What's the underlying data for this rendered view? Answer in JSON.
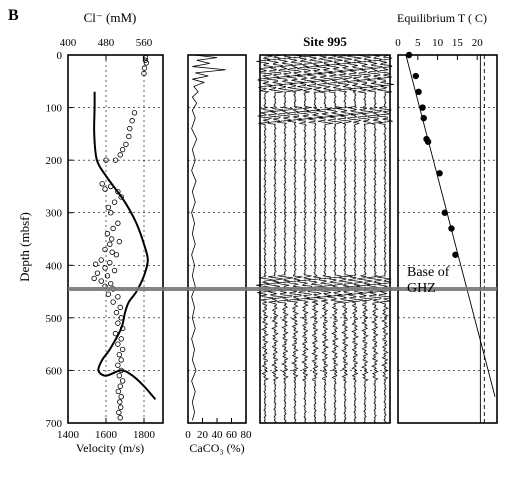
{
  "panel_label": "B",
  "chart_data": [
    {
      "type": "line",
      "name": "velocity-chloride",
      "title": "",
      "xlabel": "Velocity (m/s)",
      "ylabel": "Depth (mbsf)",
      "xlim": [
        1400,
        1900
      ],
      "ylim": [
        0,
        700
      ],
      "x_ticks": [
        1400,
        1600,
        1800
      ],
      "y_ticks": [
        0,
        100,
        200,
        300,
        400,
        500,
        600,
        700
      ],
      "grid": true,
      "velocity_curve": [
        [
          1540,
          70
        ],
        [
          1540,
          100
        ],
        [
          1538,
          150
        ],
        [
          1552,
          200
        ],
        [
          1600,
          230
        ],
        [
          1640,
          250
        ],
        [
          1700,
          280
        ],
        [
          1760,
          320
        ],
        [
          1800,
          360
        ],
        [
          1820,
          390
        ],
        [
          1800,
          420
        ],
        [
          1760,
          450
        ],
        [
          1720,
          470
        ],
        [
          1700,
          490
        ],
        [
          1680,
          520
        ],
        [
          1620,
          560
        ],
        [
          1580,
          580
        ],
        [
          1560,
          600
        ],
        [
          1600,
          610
        ],
        [
          1680,
          600
        ],
        [
          1740,
          610
        ],
        [
          1800,
          630
        ],
        [
          1860,
          655
        ]
      ],
      "top_axis": {
        "label": "Cl⁻ (mM)",
        "range": [
          400,
          600
        ],
        "ticks": [
          400,
          480,
          560
        ]
      },
      "chloride_points": [
        [
          563,
          5
        ],
        [
          565,
          15
        ],
        [
          561,
          25
        ],
        [
          560,
          35
        ],
        [
          563,
          10
        ],
        [
          540,
          110
        ],
        [
          535,
          125
        ],
        [
          530,
          140
        ],
        [
          528,
          155
        ],
        [
          522,
          170
        ],
        [
          515,
          180
        ],
        [
          510,
          190
        ],
        [
          500,
          200
        ],
        [
          480,
          200
        ],
        [
          472,
          245
        ],
        [
          490,
          250
        ],
        [
          478,
          255
        ],
        [
          505,
          260
        ],
        [
          512,
          270
        ],
        [
          498,
          280
        ],
        [
          485,
          290
        ],
        [
          490,
          300
        ],
        [
          505,
          320
        ],
        [
          495,
          330
        ],
        [
          483,
          340
        ],
        [
          492,
          350
        ],
        [
          508,
          355
        ],
        [
          488,
          360
        ],
        [
          478,
          370
        ],
        [
          493,
          375
        ],
        [
          502,
          380
        ],
        [
          470,
          390
        ],
        [
          488,
          395
        ],
        [
          458,
          398
        ],
        [
          478,
          405
        ],
        [
          498,
          410
        ],
        [
          462,
          415
        ],
        [
          483,
          420
        ],
        [
          455,
          425
        ],
        [
          470,
          430
        ],
        [
          490,
          435
        ],
        [
          478,
          440
        ],
        [
          495,
          445
        ],
        [
          485,
          455
        ],
        [
          505,
          460
        ],
        [
          495,
          470
        ],
        [
          510,
          480
        ],
        [
          502,
          490
        ],
        [
          512,
          500
        ],
        [
          505,
          510
        ],
        [
          515,
          520
        ],
        [
          500,
          530
        ],
        [
          512,
          540
        ],
        [
          505,
          550
        ],
        [
          515,
          560
        ],
        [
          508,
          570
        ],
        [
          512,
          580
        ],
        [
          505,
          590
        ],
        [
          512,
          600
        ],
        [
          508,
          610
        ],
        [
          515,
          620
        ],
        [
          510,
          630
        ],
        [
          506,
          640
        ],
        [
          512,
          650
        ],
        [
          509,
          660
        ],
        [
          511,
          670
        ],
        [
          507,
          680
        ],
        [
          510,
          690
        ]
      ]
    },
    {
      "type": "line",
      "name": "carbonate",
      "title": "",
      "xlabel": "CaCO₃ (%)",
      "xlim": [
        0,
        80
      ],
      "ylim": [
        0,
        700
      ],
      "x_ticks": [
        0,
        20,
        40,
        60,
        80
      ],
      "series": [
        {
          "values": [
            [
              8,
              0
            ],
            [
              40,
              5
            ],
            [
              12,
              10
            ],
            [
              30,
              16
            ],
            [
              6,
              22
            ],
            [
              52,
              28
            ],
            [
              10,
              34
            ],
            [
              28,
              40
            ],
            [
              6,
              46
            ],
            [
              22,
              52
            ],
            [
              8,
              60
            ],
            [
              14,
              70
            ],
            [
              6,
              80
            ],
            [
              12,
              92
            ],
            [
              6,
              105
            ],
            [
              10,
              120
            ],
            [
              5,
              140
            ],
            [
              12,
              160
            ],
            [
              6,
              180
            ],
            [
              10,
              200
            ],
            [
              5,
              220
            ],
            [
              11,
              240
            ],
            [
              6,
              260
            ],
            [
              10,
              280
            ],
            [
              5,
              300
            ],
            [
              9,
              320
            ],
            [
              6,
              340
            ],
            [
              10,
              360
            ],
            [
              5,
              380
            ],
            [
              9,
              400
            ],
            [
              6,
              420
            ],
            [
              10,
              440
            ],
            [
              5,
              460
            ],
            [
              9,
              480
            ],
            [
              6,
              500
            ],
            [
              10,
              520
            ],
            [
              5,
              540
            ],
            [
              9,
              560
            ],
            [
              6,
              580
            ],
            [
              11,
              600
            ],
            [
              5,
              620
            ],
            [
              10,
              640
            ],
            [
              6,
              660
            ],
            [
              9,
              680
            ],
            [
              6,
              695
            ]
          ]
        }
      ]
    },
    {
      "type": "line",
      "name": "seismic",
      "title": "Site 995",
      "ylim": [
        0,
        700
      ],
      "traces": 13,
      "strong_reflection_bands": [
        [
          0,
          70
        ],
        [
          100,
          130
        ],
        [
          420,
          470
        ]
      ]
    },
    {
      "type": "scatter",
      "name": "temperature",
      "title": "",
      "xlabel": "",
      "top_axis": {
        "label": "Equilibrium  T ( C)",
        "range": [
          0,
          25
        ],
        "ticks": [
          0,
          5,
          10,
          15,
          20
        ]
      },
      "ylim": [
        0,
        700
      ],
      "points": [
        [
          2.8,
          0
        ],
        [
          4.5,
          40
        ],
        [
          5.2,
          70
        ],
        [
          6.2,
          100
        ],
        [
          6.5,
          120
        ],
        [
          7.2,
          160
        ],
        [
          7.6,
          165
        ],
        [
          10.5,
          225
        ],
        [
          11.8,
          300
        ],
        [
          13.5,
          330
        ],
        [
          14.5,
          380
        ]
      ],
      "gradient_line": [
        [
          2.0,
          0
        ],
        [
          24.5,
          650
        ]
      ],
      "dashed_line_x": 21.8,
      "solid_line_x": 20.8,
      "annotation": "Base of\nGHZ"
    }
  ],
  "bsr_depth": 445,
  "annotation_line1": "Base of",
  "annotation_line2": "GHZ"
}
